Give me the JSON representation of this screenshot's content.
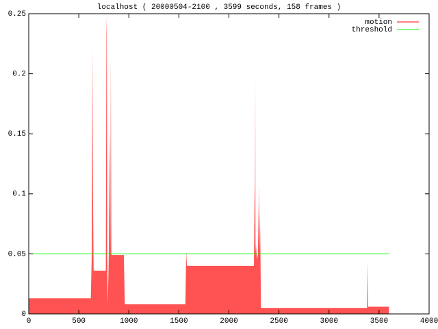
{
  "chart_data": {
    "type": "area",
    "title": "localhost ( 20000504-2100 , 3599 seconds, 158 frames )",
    "xlim": [
      0,
      4000
    ],
    "xticks": [
      0,
      500,
      1000,
      1500,
      2000,
      2500,
      3000,
      3500,
      4000
    ],
    "ylim": [
      0,
      0.25
    ],
    "yticks": [
      0,
      0.05,
      0.1,
      0.15,
      0.2,
      0.25
    ],
    "legend": "top-right",
    "series": [
      {
        "name": "motion",
        "style": "area",
        "color": "#ff0000",
        "fill": "#ff5252",
        "x": [
          0,
          620,
          630,
          636,
          642,
          648,
          770,
          776,
          780,
          784,
          790,
          800,
          810,
          815,
          820,
          825,
          830,
          950,
          960,
          1565,
          1573,
          1580,
          1590,
          2250,
          2255,
          2260,
          2263,
          2266,
          2270,
          2280,
          2290,
          2300,
          2305,
          2310,
          2315,
          2320,
          3380,
          3385,
          3390,
          3400,
          3599
        ],
        "values": [
          0.013,
          0.013,
          0.05,
          0.221,
          0.1,
          0.036,
          0.036,
          0.232,
          0.25,
          0.05,
          0.008,
          0.05,
          0.154,
          0.05,
          0.215,
          0.05,
          0.049,
          0.049,
          0.008,
          0.008,
          0.052,
          0.04,
          0.04,
          0.04,
          0.11,
          0.05,
          0.201,
          0.05,
          0.058,
          0.045,
          0.05,
          0.107,
          0.05,
          0.084,
          0.05,
          0.005,
          0.005,
          0.044,
          0.006,
          0.006,
          0.006
        ]
      },
      {
        "name": "threshold",
        "style": "line",
        "color": "#00ff00",
        "x": [
          0,
          3599
        ],
        "values": [
          0.05,
          0.05
        ]
      }
    ]
  }
}
